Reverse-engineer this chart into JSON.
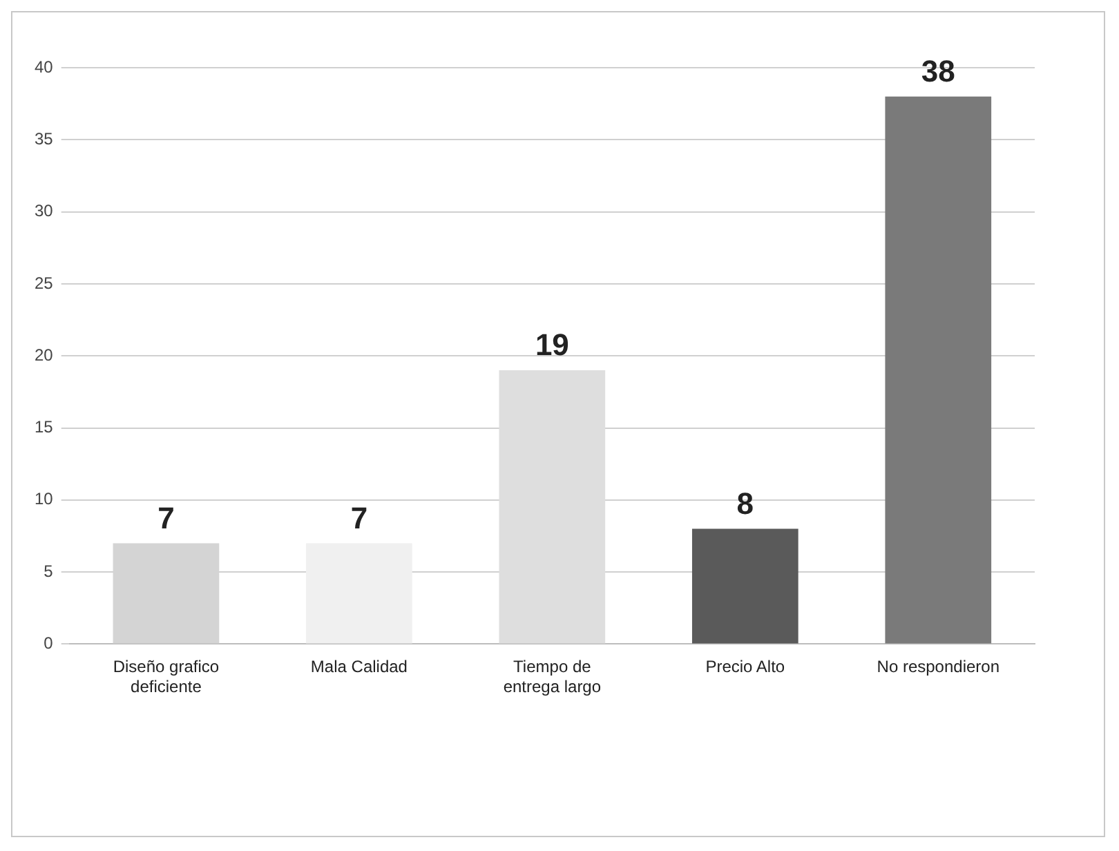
{
  "chart_data": {
    "type": "bar",
    "categories": [
      "Diseño grafico deficiente",
      "Mala Calidad",
      "Tiempo de entrega largo",
      "Precio Alto",
      "No respondieron"
    ],
    "values": [
      7,
      7,
      19,
      8,
      38
    ],
    "colors": [
      "#d4d4d4",
      "#f0f0f0",
      "#dedede",
      "#5a5a5a",
      "#7a7a7a"
    ],
    "ylim": [
      0,
      40
    ],
    "yticks": [
      0,
      5,
      10,
      15,
      20,
      25,
      30,
      35,
      40
    ],
    "grid": "y",
    "data_labels": true,
    "legend": false
  }
}
